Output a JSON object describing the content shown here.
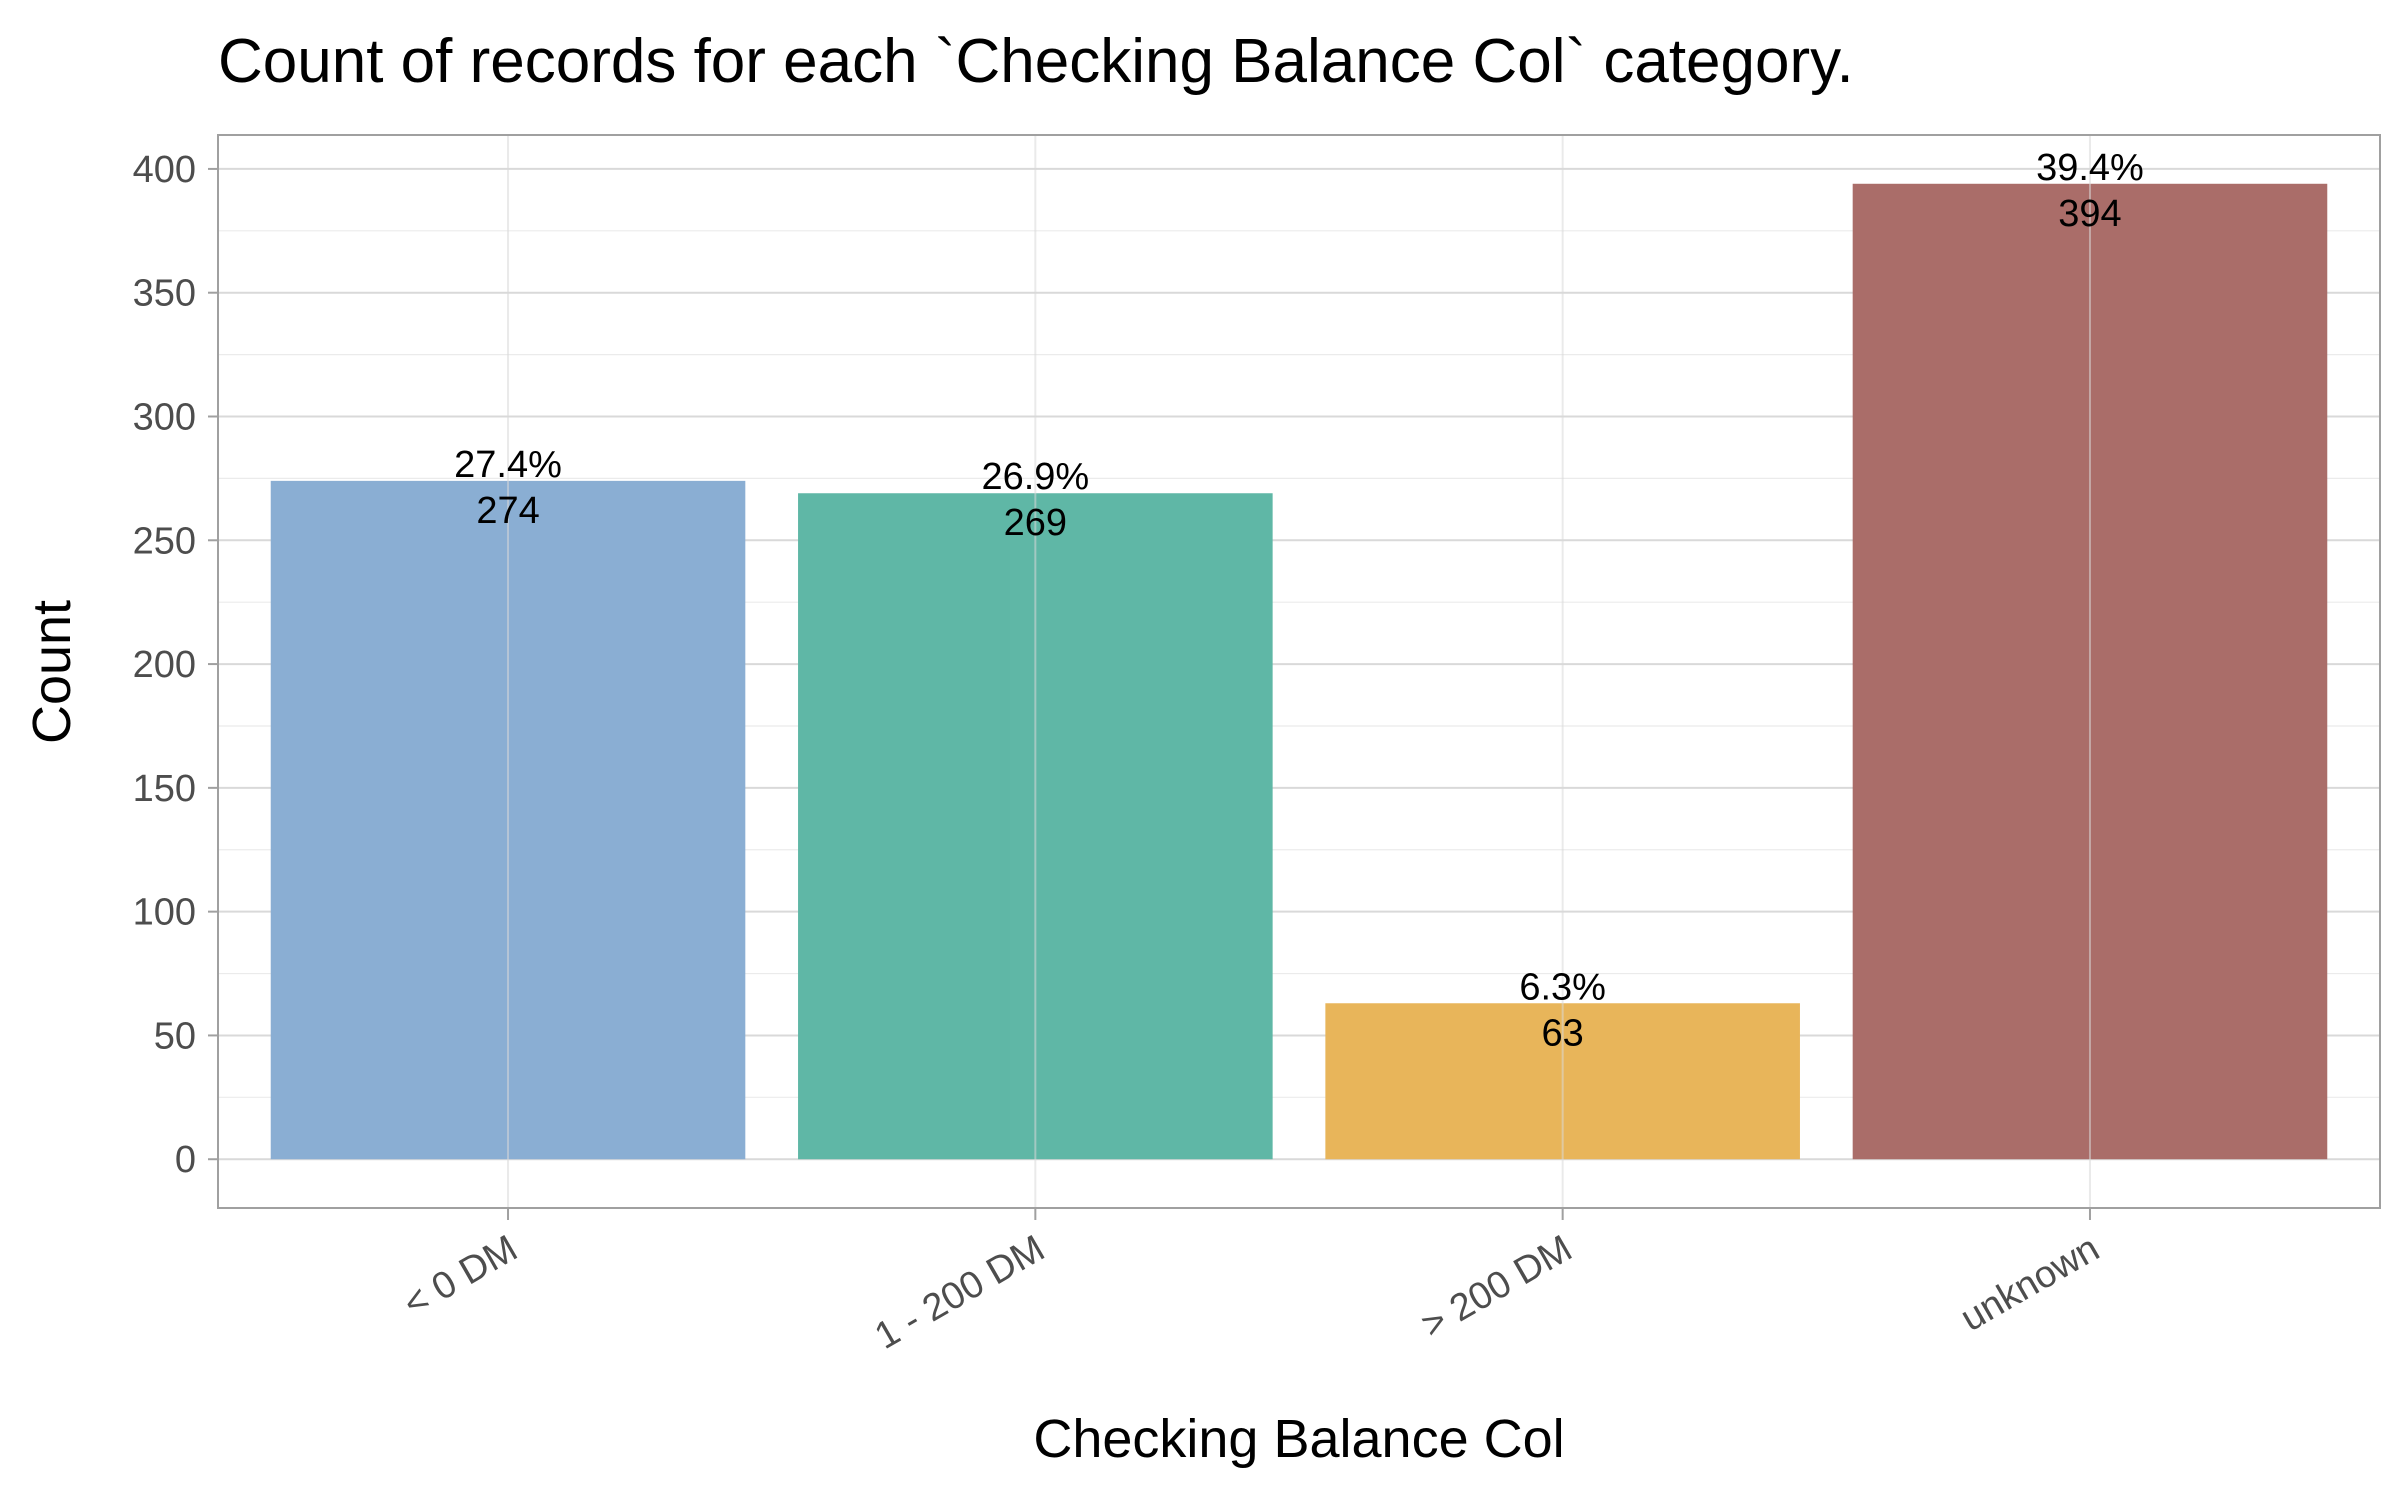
{
  "chart_data": {
    "type": "bar",
    "title": "Count of records for each `Checking Balance Col` category.",
    "xlabel": "Checking Balance Col",
    "ylabel": "Count",
    "categories": [
      "< 0 DM",
      "1 - 200 DM",
      "> 200 DM",
      "unknown"
    ],
    "values": [
      274,
      269,
      63,
      394
    ],
    "percent_labels": [
      "27.4%",
      "26.9%",
      "6.3%",
      "39.4%"
    ],
    "count_labels": [
      "274",
      "269",
      "63",
      "394"
    ],
    "colors": [
      "#8aaed3",
      "#5fb7a6",
      "#e8b55a",
      "#aa6d69"
    ],
    "ylim": [
      -19.7,
      413.7
    ],
    "yticks": [
      0,
      50,
      100,
      150,
      200,
      250,
      300,
      350,
      400
    ],
    "ytick_labels": [
      "0",
      "50",
      "100",
      "150",
      "200",
      "250",
      "300",
      "350",
      "400"
    ],
    "grid": true,
    "legend": "none"
  }
}
